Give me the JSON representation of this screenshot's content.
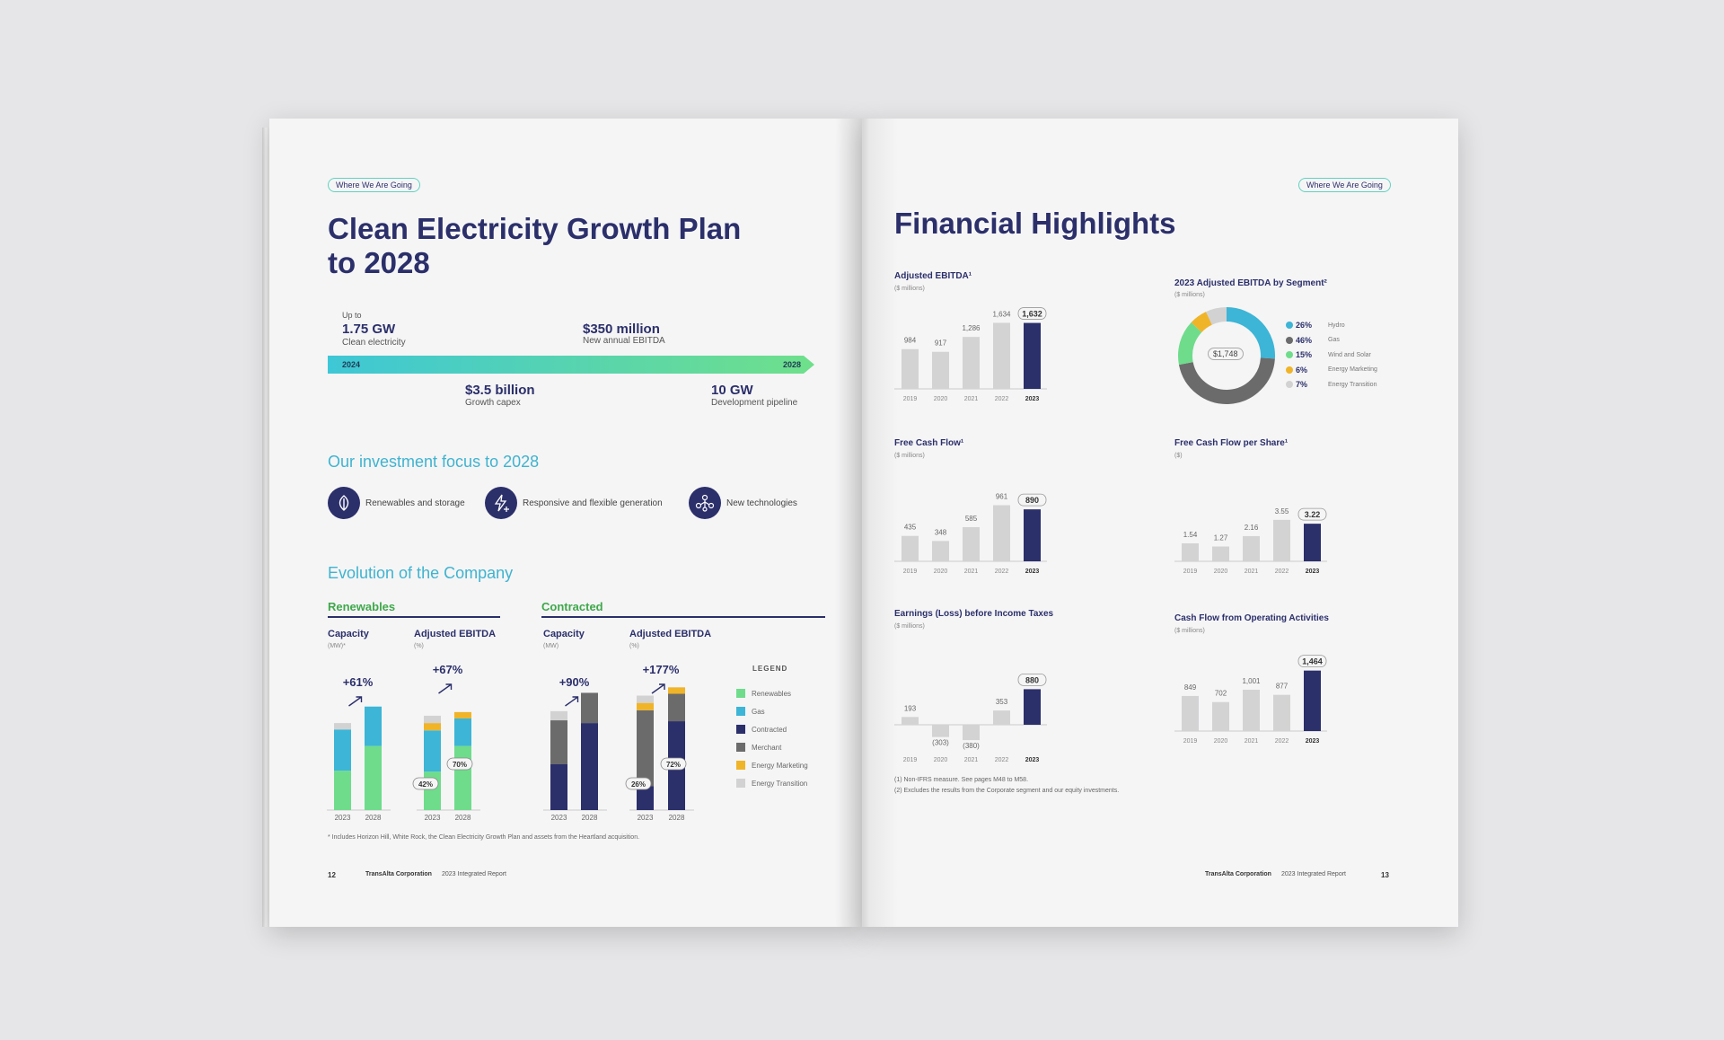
{
  "colors": {
    "navy": "#2b2f6a",
    "teal": "#3fb3cf",
    "green": "#6fdc8c",
    "gas": "#3db5d6",
    "merchant": "#6b6b6b",
    "marketing": "#f0b429",
    "transition": "#d2d2d2",
    "grey_bar": "#d3d3d3"
  },
  "left": {
    "pill": "Where We Are Going",
    "title_line1": "Clean Electricity Growth Plan",
    "title_line2": "to 2028",
    "timeline": {
      "upto": "Up to",
      "gw_value": "1.75 GW",
      "gw_label": "Clean electricity",
      "ebitda_value": "$350 million",
      "ebitda_label": "New annual EBITDA",
      "start": "2024",
      "end": "2028",
      "capex_value": "$3.5 billion",
      "capex_label": "Growth capex",
      "pipeline_value": "10 GW",
      "pipeline_label": "Development pipeline"
    },
    "focus_title": "Our investment focus to 2028",
    "focus_items": [
      {
        "icon": "leaf-icon",
        "label": "Renewables and storage"
      },
      {
        "icon": "lightning-plus-icon",
        "label": "Responsive and flexible generation"
      },
      {
        "icon": "network-icon",
        "label": "New technologies"
      }
    ],
    "evolution_title": "Evolution of the Company",
    "groups": {
      "renewables": "Renewables",
      "contracted": "Contracted"
    },
    "col_capacity": "Capacity",
    "col_capacity_unit_star": "(MW)*",
    "col_capacity_unit": "(MW)",
    "col_ebitda": "Adjusted EBITDA",
    "col_ebitda_unit": "(%)",
    "growth": {
      "ren_cap": "+61%",
      "ren_ebitda": "+67%",
      "con_cap": "+90%",
      "con_ebitda": "+177%"
    },
    "callouts": {
      "ren_2023": "42%",
      "ren_2028": "70%",
      "con_2023": "26%",
      "con_2028": "72%"
    },
    "years": [
      "2023",
      "2028"
    ],
    "legend_title": "LEGEND",
    "legend": [
      {
        "label": "Renewables",
        "color": "#6fdc8c"
      },
      {
        "label": "Gas",
        "color": "#3db5d6"
      },
      {
        "label": "Contracted",
        "color": "#2b2f6a"
      },
      {
        "label": "Merchant",
        "color": "#6b6b6b"
      },
      {
        "label": "Energy Marketing",
        "color": "#f0b429"
      },
      {
        "label": "Energy Transition",
        "color": "#d2d2d2"
      }
    ],
    "footnote": "*   Includes Horizon Hill, White Rock, the Clean Electricity Growth Plan and assets from the Heartland acquisition.",
    "page_num": "12",
    "company": "TransAlta Corporation",
    "report": "2023 Integrated Report"
  },
  "right": {
    "pill": "Where We Are Going",
    "title": "Financial Highlights",
    "millions": "($ millions)",
    "dollars": "($)",
    "donut_title": "2023 Adjusted EBITDA by Segment²",
    "donut_center": "$1,748",
    "donut_legend": [
      {
        "pct": "26%",
        "label": "Hydro",
        "color": "#3db5d6"
      },
      {
        "pct": "46%",
        "label": "Gas",
        "color": "#6b6b6b"
      },
      {
        "pct": "15%",
        "label": "Wind and Solar",
        "color": "#6fdc8c"
      },
      {
        "pct": "6%",
        "label": "Energy Marketing",
        "color": "#f0b429"
      },
      {
        "pct": "7%",
        "label": "Energy Transition",
        "color": "#d2d2d2"
      }
    ],
    "footnotes": [
      "(1)    Non-IFRS measure. See pages M48 to M58.",
      "(2)    Excludes the results from the Corporate segment and our equity investments."
    ],
    "page_num": "13",
    "company": "TransAlta Corporation",
    "report": "2023 Integrated Report"
  },
  "chart_data": [
    {
      "type": "bar",
      "title": "Adjusted EBITDA¹",
      "ylabel": "($ millions)",
      "categories": [
        "2019",
        "2020",
        "2021",
        "2022",
        "2023"
      ],
      "values": [
        984,
        917,
        1286,
        1634,
        1632
      ],
      "labels": [
        "984",
        "917",
        "1,286",
        "1,634",
        "1,632"
      ]
    },
    {
      "type": "bar",
      "title": "Free Cash Flow¹",
      "ylabel": "($ millions)",
      "categories": [
        "2019",
        "2020",
        "2021",
        "2022",
        "2023"
      ],
      "values": [
        435,
        348,
        585,
        961,
        890
      ],
      "labels": [
        "435",
        "348",
        "585",
        "961",
        "890"
      ]
    },
    {
      "type": "bar",
      "title": "Earnings (Loss) before Income Taxes",
      "ylabel": "($ millions)",
      "categories": [
        "2019",
        "2020",
        "2021",
        "2022",
        "2023"
      ],
      "values": [
        193,
        -303,
        -380,
        353,
        880
      ],
      "labels": [
        "193",
        "(303)",
        "(380)",
        "353",
        "880"
      ]
    },
    {
      "type": "bar",
      "title": "Free Cash Flow per Share¹",
      "ylabel": "($)",
      "categories": [
        "2019",
        "2020",
        "2021",
        "2022",
        "2023"
      ],
      "values": [
        1.54,
        1.27,
        2.16,
        3.55,
        3.22
      ],
      "labels": [
        "1.54",
        "1.27",
        "2.16",
        "3.55",
        "3.22"
      ]
    },
    {
      "type": "bar",
      "title": "Cash Flow from Operating Activities",
      "ylabel": "($ millions)",
      "categories": [
        "2019",
        "2020",
        "2021",
        "2022",
        "2023"
      ],
      "values": [
        849,
        702,
        1001,
        877,
        1464
      ],
      "labels": [
        "849",
        "702",
        "1,001",
        "877",
        "1,464"
      ]
    },
    {
      "type": "pie",
      "title": "2023 Adjusted EBITDA by Segment²",
      "categories": [
        "Hydro",
        "Gas",
        "Wind and Solar",
        "Energy Marketing",
        "Energy Transition"
      ],
      "values": [
        26,
        46,
        15,
        6,
        7
      ]
    },
    {
      "type": "bar",
      "title": "Renewables",
      "series": [
        {
          "name": "Capacity",
          "stack": [
            {
              "cat": "2023",
              "Renewables": 43,
              "Gas": 45,
              "Energy Transition": 7
            },
            {
              "cat": "2028",
              "Renewables": 70,
              "Gas": 43
            }
          ]
        },
        {
          "name": "Adjusted EBITDA",
          "stack": [
            {
              "cat": "2023",
              "Renewables": 42,
              "Gas": 45,
              "Energy Marketing": 8,
              "Energy Transition": 8
            },
            {
              "cat": "2028",
              "Renewables": 70,
              "Gas": 30,
              "Energy Marketing": 7
            }
          ]
        }
      ]
    },
    {
      "type": "bar",
      "title": "Contracted",
      "series": [
        {
          "name": "Capacity",
          "stack": [
            {
              "cat": "2023",
              "Contracted": 50,
              "Merchant": 48,
              "Energy Transition": 10
            },
            {
              "cat": "2028",
              "Contracted": 95,
              "Merchant": 33
            }
          ]
        },
        {
          "name": "Adjusted EBITDA",
          "stack": [
            {
              "cat": "2023",
              "Contracted": 26,
              "Merchant": 83,
              "Energy Marketing": 8,
              "Energy Transition": 8
            },
            {
              "cat": "2028",
              "Contracted": 97,
              "Merchant": 30,
              "Energy Marketing": 7
            }
          ]
        }
      ]
    }
  ]
}
